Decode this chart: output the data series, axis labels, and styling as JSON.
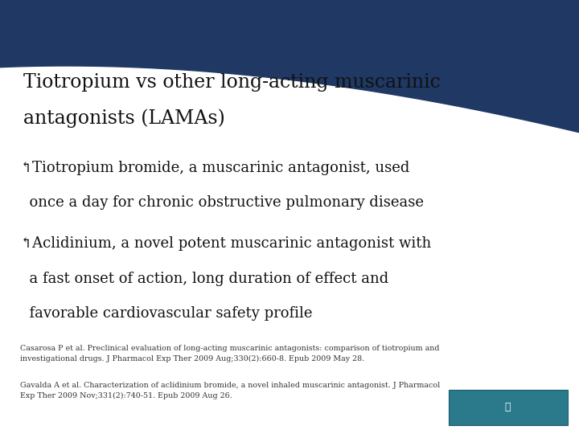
{
  "title_line1": "Tiotropium vs other long-acting muscarinic",
  "title_line2": "antagonists (LAMAs)",
  "bullet1_line1": "↰Tiotropium bromide, a muscarinic antagonist, used",
  "bullet1_line2": "  once a day for chronic obstructive pulmonary disease",
  "bullet2_line1": "↰Aclidinium, a novel potent muscarinic antagonist with",
  "bullet2_line2": "  a fast onset of action, long duration of effect and",
  "bullet2_line3": "  favorable cardiovascular safety profile",
  "ref1": "Casarosa P et al. Preclinical evaluation of long-acting muscarinic antagonists: comparison of tiotropium and\ninvestigational drugs. J Pharmacol Exp Ther 2009 Aug;330(2):660-8. Epub 2009 May 28.",
  "ref2": "Gavalda A et al. Characterization of aclidinium bromide, a novel inhaled muscarinic antagonist. J Pharmacol\nExp Ther 2009 Nov;331(2):740-51. Epub 2009 Aug 26.",
  "bg_color": "#ffffff",
  "header_color": "#1f3864",
  "text_color": "#111111",
  "ref_color": "#333333",
  "logo_color": "#2a7a8c",
  "title_fontsize": 17,
  "bullet_fontsize": 13,
  "ref_fontsize": 6.8
}
